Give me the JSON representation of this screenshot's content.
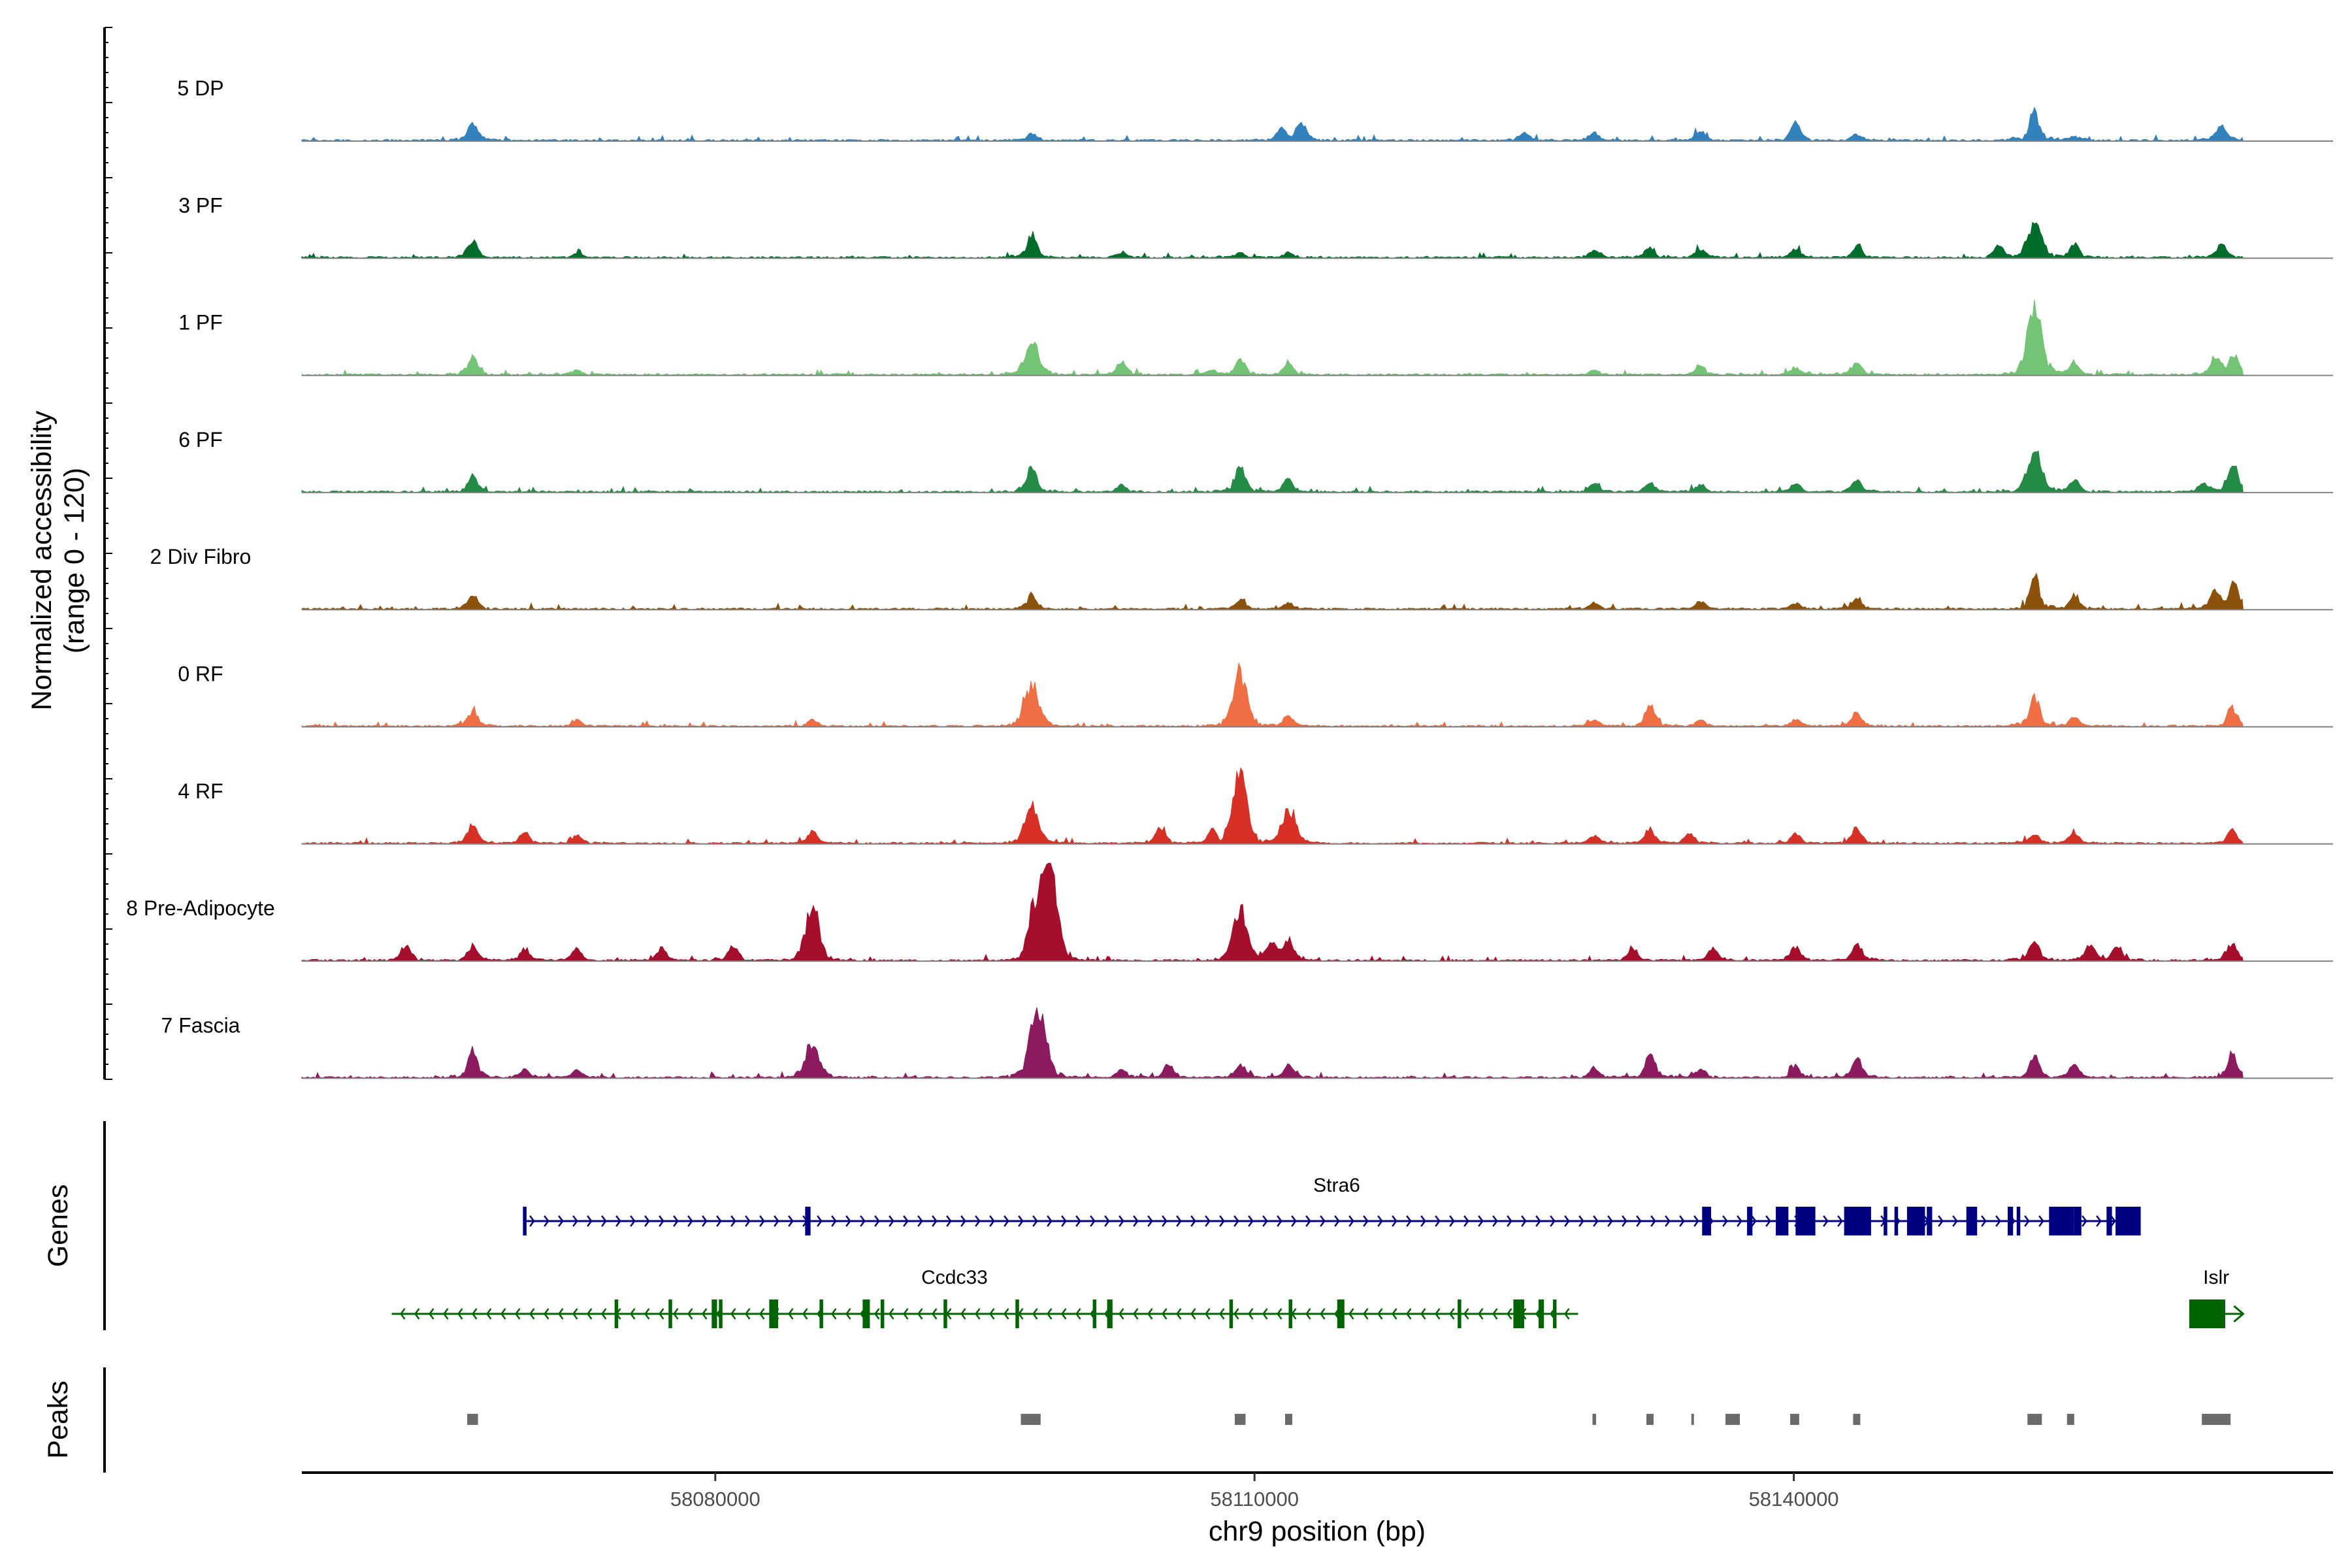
{
  "chart_data": {
    "type": "area",
    "title": "",
    "xlabel": "chr9 position (bp)",
    "ylabel_line1": "Normalized accessibility",
    "ylabel_line2": "(range 0 - 120)",
    "genes_label": "Genes",
    "peaks_label": "Peaks",
    "y_range": [
      0,
      120
    ],
    "xlim": [
      58057000,
      58170000
    ],
    "xticks": [
      58080000,
      58110000,
      58140000
    ],
    "xtick_labels": [
      "58080000",
      "58110000",
      "58140000"
    ],
    "track_end": 58165000,
    "sites": [
      58066500,
      58069400,
      58072300,
      58085400,
      58097600,
      58102600,
      58109200,
      58111900,
      58128900,
      58132000,
      58134200,
      58140100,
      58143500,
      58153400,
      58155600,
      58162600,
      58164000
    ],
    "tracks": [
      {
        "name": "5 DP",
        "color": "#3182bd",
        "peaks": [
          [
            58066500,
            22
          ],
          [
            58097600,
            9
          ],
          [
            58111500,
            14
          ],
          [
            58112600,
            22
          ],
          [
            58125000,
            11
          ],
          [
            58128900,
            10
          ],
          [
            58134800,
            11
          ],
          [
            58140100,
            24
          ],
          [
            58143500,
            8
          ],
          [
            58153400,
            36
          ],
          [
            58155600,
            6
          ],
          [
            58163800,
            20
          ]
        ]
      },
      {
        "name": "3 PF",
        "color": "#006d2c",
        "peaks": [
          [
            58066500,
            22
          ],
          [
            58072300,
            5
          ],
          [
            58097600,
            30
          ],
          [
            58102600,
            6
          ],
          [
            58109200,
            6
          ],
          [
            58111900,
            6
          ],
          [
            58128900,
            9
          ],
          [
            58132000,
            12
          ],
          [
            58134800,
            11
          ],
          [
            58140100,
            10
          ],
          [
            58143500,
            14
          ],
          [
            58151400,
            15
          ],
          [
            58153400,
            46
          ],
          [
            58155600,
            17
          ],
          [
            58163800,
            18
          ]
        ]
      },
      {
        "name": "1 PF",
        "color": "#74c476",
        "peaks": [
          [
            58066500,
            22
          ],
          [
            58072300,
            6
          ],
          [
            58097600,
            44
          ],
          [
            58102600,
            15
          ],
          [
            58107600,
            6
          ],
          [
            58109200,
            19
          ],
          [
            58111900,
            16
          ],
          [
            58128900,
            7
          ],
          [
            58134800,
            11
          ],
          [
            58140100,
            10
          ],
          [
            58143500,
            16
          ],
          [
            58153400,
            92
          ],
          [
            58155600,
            16
          ],
          [
            58163500,
            22
          ],
          [
            58164500,
            26
          ]
        ]
      },
      {
        "name": "6 PF",
        "color": "#238b45",
        "peaks": [
          [
            58066500,
            20
          ],
          [
            58097600,
            34
          ],
          [
            58102600,
            8
          ],
          [
            58109200,
            36
          ],
          [
            58111900,
            16
          ],
          [
            58128900,
            11
          ],
          [
            58132000,
            12
          ],
          [
            58134800,
            10
          ],
          [
            58140100,
            11
          ],
          [
            58143500,
            16
          ],
          [
            58153400,
            52
          ],
          [
            58155600,
            16
          ],
          [
            58162800,
            10
          ],
          [
            58164400,
            38
          ]
        ]
      },
      {
        "name": "2 Div Fibro",
        "color": "#8c510a",
        "peaks": [
          [
            58066500,
            18
          ],
          [
            58097600,
            18
          ],
          [
            58109200,
            12
          ],
          [
            58111900,
            8
          ],
          [
            58128900,
            8
          ],
          [
            58134800,
            10
          ],
          [
            58140100,
            8
          ],
          [
            58143500,
            12
          ],
          [
            58153400,
            40
          ],
          [
            58155600,
            18
          ],
          [
            58163400,
            24
          ],
          [
            58164500,
            32
          ]
        ]
      },
      {
        "name": "0 RF",
        "color": "#ef6e44",
        "peaks": [
          [
            58066500,
            20
          ],
          [
            58072300,
            7
          ],
          [
            58085400,
            8
          ],
          [
            58097600,
            56
          ],
          [
            58109200,
            70
          ],
          [
            58111900,
            14
          ],
          [
            58128900,
            8
          ],
          [
            58132000,
            28
          ],
          [
            58134800,
            8
          ],
          [
            58140100,
            8
          ],
          [
            58143500,
            16
          ],
          [
            58153400,
            40
          ],
          [
            58155600,
            12
          ],
          [
            58164400,
            24
          ]
        ]
      },
      {
        "name": "4 RF",
        "color": "#d73027",
        "peaks": [
          [
            58066500,
            24
          ],
          [
            58069400,
            14
          ],
          [
            58072300,
            10
          ],
          [
            58085400,
            16
          ],
          [
            58097600,
            48
          ],
          [
            58104800,
            22
          ],
          [
            58107600,
            16
          ],
          [
            58109200,
            95
          ],
          [
            58111900,
            45
          ],
          [
            58128900,
            10
          ],
          [
            58132000,
            18
          ],
          [
            58134200,
            12
          ],
          [
            58140100,
            12
          ],
          [
            58143500,
            22
          ],
          [
            58153400,
            12
          ],
          [
            58155600,
            12
          ],
          [
            58164400,
            18
          ]
        ]
      },
      {
        "name": "8 Pre-Adipocyte",
        "color": "#a50f2c",
        "peaks": [
          [
            58062800,
            20
          ],
          [
            58066500,
            18
          ],
          [
            58069400,
            14
          ],
          [
            58072300,
            14
          ],
          [
            58077000,
            16
          ],
          [
            58081000,
            18
          ],
          [
            58085400,
            68
          ],
          [
            58097600,
            40
          ],
          [
            58098200,
            74
          ],
          [
            58098700,
            86
          ],
          [
            58109200,
            64
          ],
          [
            58111000,
            24
          ],
          [
            58111900,
            28
          ],
          [
            58131000,
            14
          ],
          [
            58135500,
            16
          ],
          [
            58140100,
            18
          ],
          [
            58143500,
            22
          ],
          [
            58153400,
            26
          ],
          [
            58156500,
            20
          ],
          [
            58158000,
            18
          ],
          [
            58164400,
            24
          ]
        ]
      },
      {
        "name": "7 Fascia",
        "color": "#8c1a5e",
        "peaks": [
          [
            58066500,
            36
          ],
          [
            58069400,
            10
          ],
          [
            58072300,
            10
          ],
          [
            58085400,
            44
          ],
          [
            58097600,
            40
          ],
          [
            58098100,
            74
          ],
          [
            58102600,
            10
          ],
          [
            58105200,
            18
          ],
          [
            58109200,
            18
          ],
          [
            58111900,
            16
          ],
          [
            58128900,
            12
          ],
          [
            58132000,
            30
          ],
          [
            58134800,
            12
          ],
          [
            58140100,
            14
          ],
          [
            58143500,
            24
          ],
          [
            58153400,
            26
          ],
          [
            58155600,
            16
          ],
          [
            58164400,
            30
          ]
        ]
      }
    ],
    "genes": [
      {
        "name": "Stra6",
        "color": "#000080",
        "strand": "+",
        "start": 58069400,
        "end": 58159200,
        "exons": [
          [
            58069300,
            58069500
          ],
          [
            58085000,
            58085300
          ],
          [
            58134900,
            58135400
          ],
          [
            58137400,
            58137700
          ],
          [
            58140700,
            58141100
          ],
          [
            58142800,
            58143500
          ],
          [
            58145000,
            58145200
          ],
          [
            58145600,
            58145800
          ],
          [
            58147400,
            58147700
          ],
          [
            58149600,
            58149900
          ],
          [
            58151900,
            58152200
          ],
          [
            58155600,
            58156000
          ],
          [
            58157400,
            58157700
          ],
          [
            58158300,
            58159300
          ]
        ],
        "wide_exons": [
          [
            58139000,
            58139700
          ],
          [
            58140100,
            58141200
          ],
          [
            58143000,
            58144300
          ],
          [
            58146300,
            58147300
          ],
          [
            58149800,
            58150200
          ],
          [
            58152400,
            58152600
          ],
          [
            58154200,
            58155600
          ],
          [
            58157900,
            58158500
          ]
        ]
      },
      {
        "name": "Ccdc33",
        "color": "#006400",
        "strand": "-",
        "start": 58062000,
        "end": 58128000,
        "exons": [
          [
            58074400,
            58074600
          ],
          [
            58077400,
            58077600
          ],
          [
            58080200,
            58080400
          ],
          [
            58085800,
            58086000
          ],
          [
            58089200,
            58089400
          ],
          [
            58092700,
            58092900
          ],
          [
            58096700,
            58096900
          ],
          [
            58101000,
            58101200
          ],
          [
            58108600,
            58108800
          ],
          [
            58111900,
            58112100
          ],
          [
            58121300,
            58121500
          ],
          [
            58124800,
            58125000
          ]
        ],
        "wide_exons": [
          [
            58079800,
            58080100
          ],
          [
            58083000,
            58083500
          ],
          [
            58088200,
            58088600
          ],
          [
            58101800,
            58102100
          ],
          [
            58114600,
            58115000
          ],
          [
            58124400,
            58124800
          ],
          [
            58125800,
            58126100
          ],
          [
            58126600,
            58126800
          ]
        ]
      },
      {
        "name": "Islr",
        "color": "#006400",
        "strand": "+",
        "start": 58162000,
        "end": 58165000,
        "exons": [
          [
            58162000,
            58164000
          ]
        ],
        "wide_exons": []
      }
    ],
    "peak_regions": [
      [
        58066200,
        58066800
      ],
      [
        58097000,
        58098100
      ],
      [
        58108900,
        58109500
      ],
      [
        58111700,
        58112100
      ],
      [
        58128800,
        58129000
      ],
      [
        58131800,
        58132200
      ],
      [
        58134300,
        58134400
      ],
      [
        58136200,
        58137000
      ],
      [
        58139800,
        58140300
      ],
      [
        58143300,
        58143700
      ],
      [
        58153000,
        58153800
      ],
      [
        58155200,
        58155600
      ],
      [
        58162700,
        58164300
      ]
    ]
  }
}
